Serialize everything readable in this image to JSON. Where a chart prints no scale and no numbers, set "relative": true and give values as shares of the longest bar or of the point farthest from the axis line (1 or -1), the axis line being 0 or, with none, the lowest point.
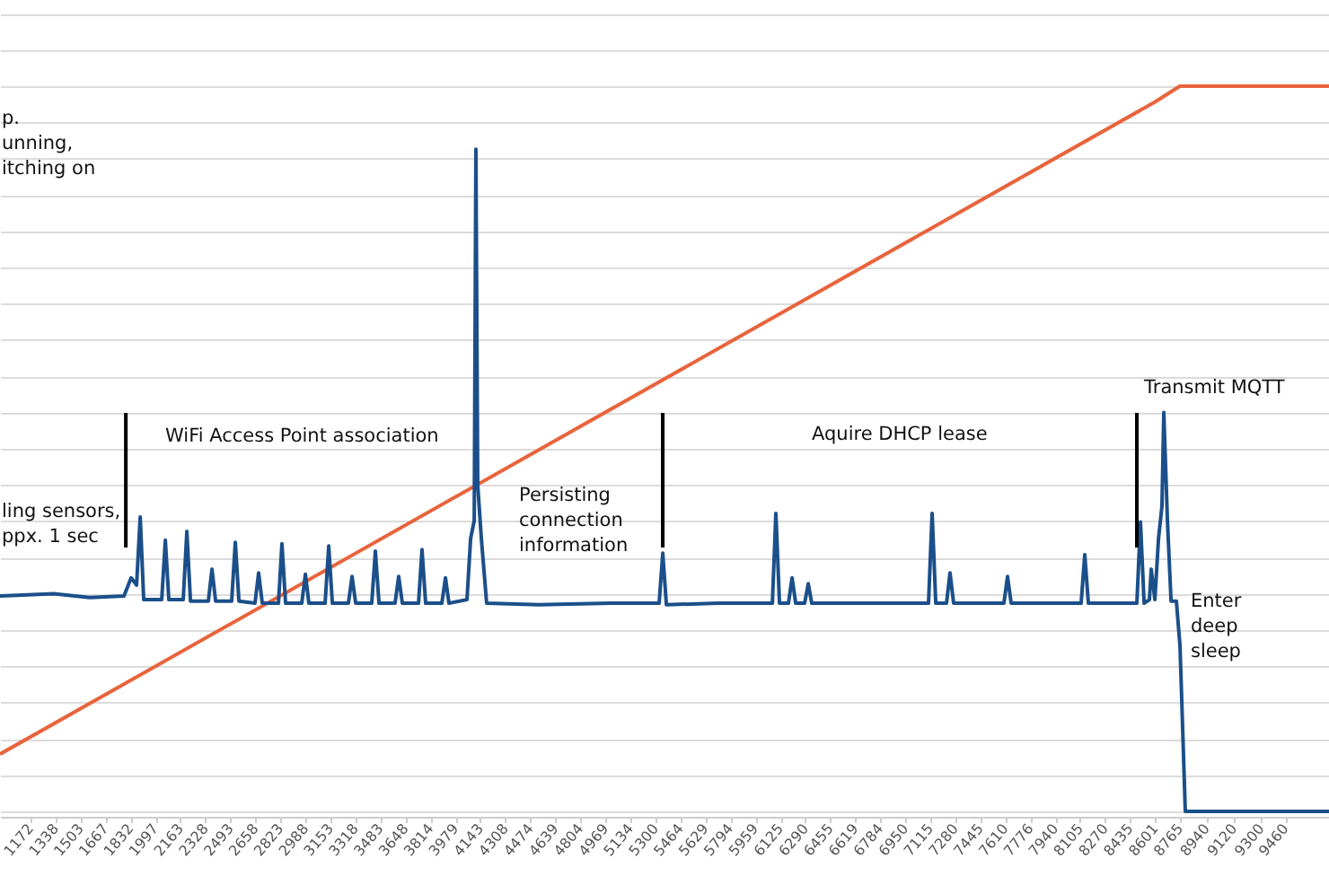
{
  "chart_data": {
    "type": "line",
    "relative": true,
    "grid": "y",
    "xlim": [
      971,
      9748
    ],
    "xticks": [
      1172,
      1338,
      1503,
      1667,
      1832,
      1997,
      2163,
      2328,
      2493,
      2658,
      2823,
      2988,
      3153,
      3318,
      3483,
      3648,
      3814,
      3979,
      4143,
      4308,
      4474,
      4639,
      4804,
      4969,
      5134,
      5300,
      5464,
      5629,
      5794,
      5959,
      6125,
      6290,
      6455,
      6619,
      6784,
      6950,
      7115,
      7280,
      7445,
      7610,
      7776,
      7940,
      8105,
      8270,
      8435,
      8601,
      8765,
      8940,
      9120,
      9300,
      9460
    ],
    "series": [
      {
        "color": "#e8643c",
        "x": [
          971,
          8597,
          8763,
          9748
        ],
        "values": [
          0.079,
          0.978,
          1.0,
          1.0
        ]
      },
      {
        "color": "#1b4f8a",
        "x": [
          971,
          1327,
          1564,
          1790,
          1837,
          1873,
          1897,
          1920,
          2039,
          2063,
          2086,
          2181,
          2205,
          2229,
          2347,
          2371,
          2395,
          2501,
          2525,
          2549,
          2655,
          2679,
          2703,
          2810,
          2833,
          2857,
          2964,
          2988,
          3011,
          3118,
          3142,
          3166,
          3272,
          3296,
          3320,
          3426,
          3450,
          3474,
          3580,
          3604,
          3628,
          3735,
          3758,
          3782,
          3889,
          3913,
          3936,
          4055,
          4079,
          4103,
          4114,
          4126,
          4150,
          4185,
          4529,
          5004,
          5324,
          5348,
          5372,
          5716,
          6072,
          6095,
          6119,
          6178,
          6202,
          6226,
          6285,
          6309,
          6332,
          6783,
          7103,
          7127,
          7151,
          7222,
          7245,
          7269,
          7601,
          7625,
          7649,
          8111,
          8135,
          8159,
          8479,
          8503,
          8527,
          8562,
          8574,
          8598,
          8622,
          8645,
          8657,
          8681,
          8705,
          8740,
          8764,
          8799,
          9274,
          9748
        ],
        "values": [
          0.297,
          0.3,
          0.295,
          0.297,
          0.322,
          0.312,
          0.406,
          0.292,
          0.292,
          0.374,
          0.292,
          0.292,
          0.386,
          0.29,
          0.29,
          0.334,
          0.29,
          0.29,
          0.371,
          0.29,
          0.287,
          0.329,
          0.287,
          0.287,
          0.369,
          0.287,
          0.287,
          0.327,
          0.287,
          0.287,
          0.366,
          0.287,
          0.287,
          0.324,
          0.287,
          0.287,
          0.359,
          0.287,
          0.287,
          0.324,
          0.287,
          0.287,
          0.361,
          0.287,
          0.287,
          0.322,
          0.287,
          0.292,
          0.376,
          0.401,
          0.913,
          0.45,
          0.376,
          0.287,
          0.285,
          0.287,
          0.287,
          0.356,
          0.285,
          0.287,
          0.287,
          0.411,
          0.287,
          0.287,
          0.322,
          0.287,
          0.287,
          0.314,
          0.287,
          0.287,
          0.287,
          0.411,
          0.287,
          0.287,
          0.329,
          0.287,
          0.287,
          0.324,
          0.287,
          0.287,
          0.354,
          0.287,
          0.287,
          0.399,
          0.287,
          0.292,
          0.334,
          0.292,
          0.376,
          0.421,
          0.55,
          0.401,
          0.29,
          0.29,
          0.228,
          0,
          0,
          0
        ]
      }
    ],
    "ref_lines": [
      {
        "axis": "x",
        "value": 1802,
        "color": "#000000"
      },
      {
        "axis": "x",
        "value": 5348,
        "color": "#000000"
      },
      {
        "axis": "x",
        "value": 8479,
        "color": "#000000"
      }
    ],
    "annotations": [
      "p.\nunning,\nitching on",
      "ling sensors,\nppx. 1 sec",
      "WiFi Access Point association",
      "Persisting\nconnection\ninformation",
      "Aquire DHCP lease",
      "Transmit MQTT",
      "Enter\ndeep\nsleep"
    ]
  }
}
